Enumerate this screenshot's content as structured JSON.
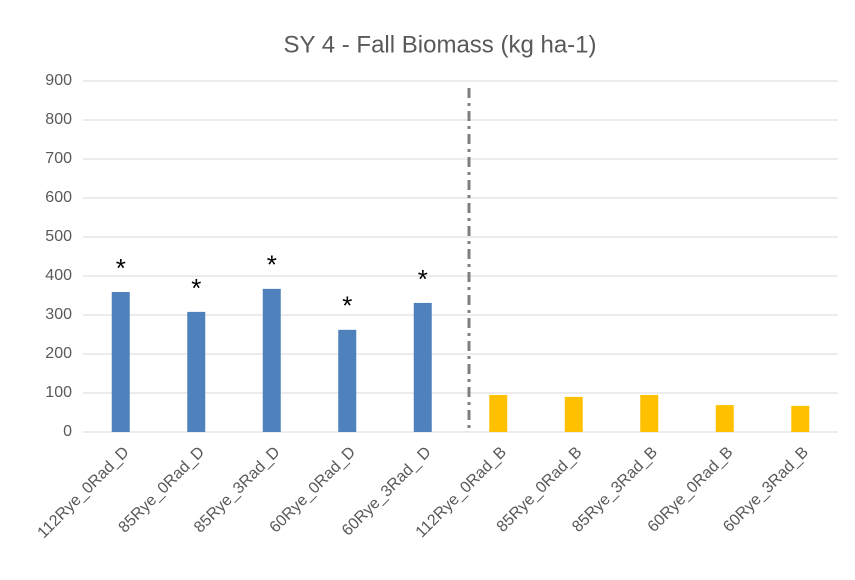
{
  "chart_data": {
    "type": "bar",
    "title": "SY 4 - Fall Biomass (kg ha-1)",
    "categories": [
      "112Rye_0Rad_D",
      "85Rye_0Rad_D",
      "85Rye_3Rad_D",
      "60Rye_0Rad_D",
      "60Rye_3Rad_ D",
      "112Rye_0Rad_B",
      "85Rye_0Rad_B",
      "85Rye_3Rad_B",
      "60Rye_0Rad_B",
      "60Rye_3Rad_B"
    ],
    "values": [
      359,
      308,
      367,
      262,
      331,
      95,
      90,
      95,
      69,
      67
    ],
    "colors": [
      "#4f81bd",
      "#4f81bd",
      "#4f81bd",
      "#4f81bd",
      "#4f81bd",
      "#ffc000",
      "#ffc000",
      "#ffc000",
      "#ffc000",
      "#ffc000"
    ],
    "bar_annotations": [
      "*",
      "*",
      "*",
      "*",
      "*",
      null,
      null,
      null,
      null,
      null
    ],
    "ylim": [
      0,
      900
    ],
    "yticks": [
      0,
      100,
      200,
      300,
      400,
      500,
      600,
      700,
      800,
      900
    ],
    "grid": true
  }
}
